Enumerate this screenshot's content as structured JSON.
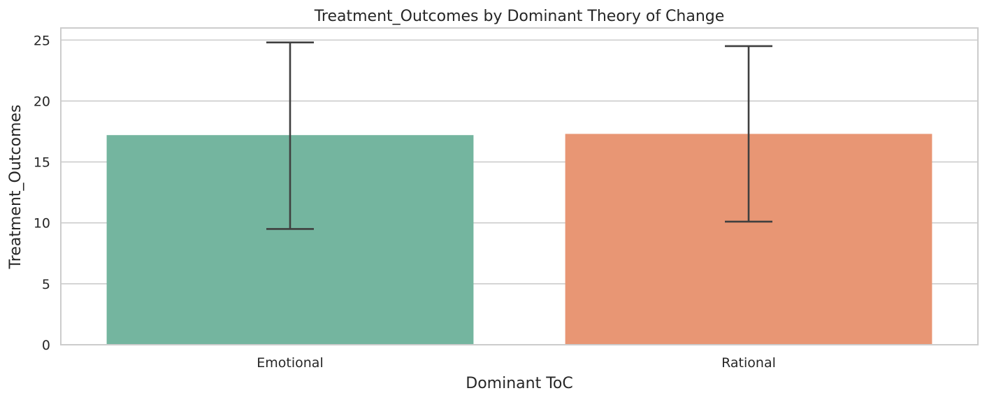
{
  "chart_data": {
    "type": "bar",
    "title": "Treatment_Outcomes by Dominant Theory of Change",
    "xlabel": "Dominant ToC",
    "ylabel": "Treatment_Outcomes",
    "categories": [
      "Emotional",
      "Rational"
    ],
    "values": [
      17.2,
      17.3
    ],
    "error_bars": [
      {
        "low": 9.5,
        "high": 24.8
      },
      {
        "low": 10.1,
        "high": 24.5
      }
    ],
    "colors": [
      "#74b59f",
      "#e89674"
    ],
    "ylim": [
      0,
      26
    ],
    "yticks": [
      0,
      5,
      10,
      15,
      20,
      25
    ],
    "grid": true
  }
}
